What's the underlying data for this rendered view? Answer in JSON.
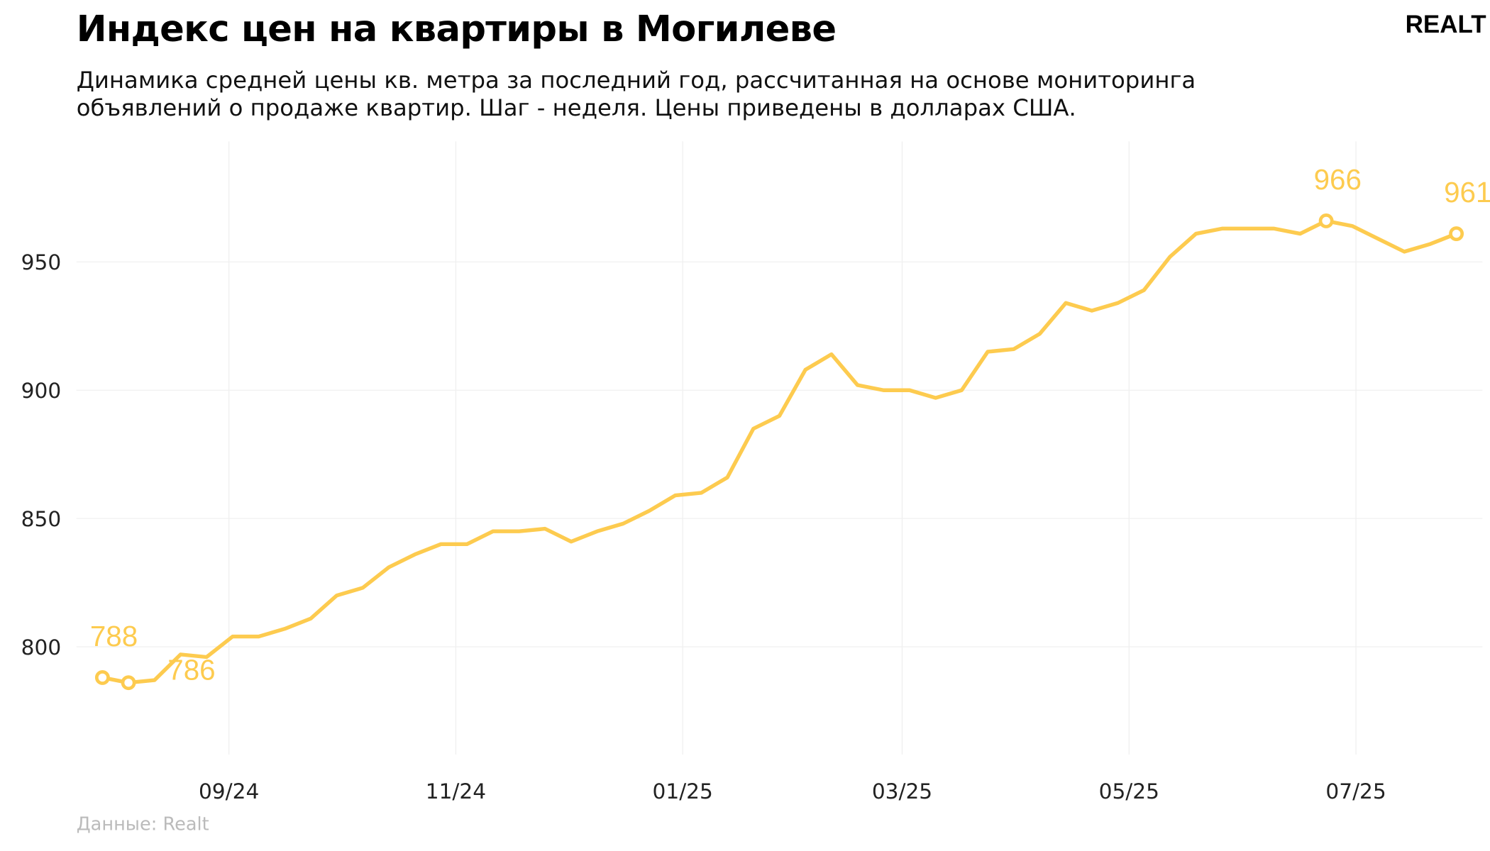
{
  "header": {
    "title": "Индекс цен на квартиры в Могилеве",
    "subtitle": "Динамика средней цены кв. метра за последний год, рассчитанная на основе мониторинга объявлений о продаже квартир. Шаг - неделя. Цены приведены в долларах США.",
    "logo": "REALT"
  },
  "footer": {
    "source": "Данные: Realt"
  },
  "chart_data": {
    "type": "line",
    "title": "Индекс цен на квартиры в Могилеве",
    "xlabel": "",
    "ylabel": "",
    "x_format": "MM/YY",
    "x_ticks": [
      "2024-09-01",
      "2024-11-01",
      "2025-01-01",
      "2025-03-01",
      "2025-05-01",
      "2025-07-01"
    ],
    "x_tick_labels": [
      "09/24",
      "11/24",
      "01/25",
      "03/25",
      "05/25",
      "07/25"
    ],
    "y_ticks": [
      800,
      850,
      900,
      950
    ],
    "ylim": [
      758,
      997
    ],
    "xlim": [
      "2024-07-22",
      "2025-08-04"
    ],
    "grid": true,
    "line_color": "#fdcb4f",
    "start_date": "2024-07-29",
    "step_days": 7,
    "values": [
      788,
      786,
      787,
      797,
      796,
      804,
      804,
      807,
      811,
      820,
      823,
      831,
      836,
      840,
      840,
      845,
      845,
      846,
      841,
      845,
      848,
      853,
      859,
      860,
      866,
      885,
      890,
      908,
      914,
      902,
      900,
      900,
      897,
      900,
      915,
      916,
      922,
      934,
      931,
      934,
      939,
      952,
      961,
      963,
      963,
      963,
      961,
      966,
      964,
      959,
      954,
      957,
      961
    ],
    "annotations": [
      {
        "index": 0,
        "label": "788",
        "position": "above"
      },
      {
        "index": 1,
        "label": "786",
        "position": "right"
      },
      {
        "index": 47,
        "label": "966",
        "position": "above"
      },
      {
        "index": 52,
        "label": "961",
        "position": "above"
      }
    ]
  }
}
